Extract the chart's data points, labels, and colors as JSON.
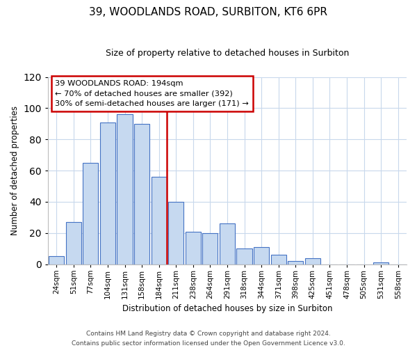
{
  "title": "39, WOODLANDS ROAD, SURBITON, KT6 6PR",
  "subtitle": "Size of property relative to detached houses in Surbiton",
  "xlabel": "Distribution of detached houses by size in Surbiton",
  "ylabel": "Number of detached properties",
  "bar_labels": [
    "24sqm",
    "51sqm",
    "77sqm",
    "104sqm",
    "131sqm",
    "158sqm",
    "184sqm",
    "211sqm",
    "238sqm",
    "264sqm",
    "291sqm",
    "318sqm",
    "344sqm",
    "371sqm",
    "398sqm",
    "425sqm",
    "451sqm",
    "478sqm",
    "505sqm",
    "531sqm",
    "558sqm"
  ],
  "bar_values": [
    5,
    27,
    65,
    91,
    96,
    90,
    56,
    40,
    21,
    20,
    26,
    10,
    11,
    6,
    2,
    4,
    0,
    0,
    0,
    1,
    0
  ],
  "bar_color": "#c6d9f0",
  "bar_edge_color": "#4472c4",
  "highlight_index": 6,
  "vline_x": 6,
  "vline_color": "#cc0000",
  "annotation_title": "39 WOODLANDS ROAD: 194sqm",
  "annotation_line1": "← 70% of detached houses are smaller (392)",
  "annotation_line2": "30% of semi-detached houses are larger (171) →",
  "annotation_box_color": "#ffffff",
  "annotation_box_edge": "#cc0000",
  "ylim": [
    0,
    120
  ],
  "yticks": [
    0,
    20,
    40,
    60,
    80,
    100,
    120
  ],
  "footer_line1": "Contains HM Land Registry data © Crown copyright and database right 2024.",
  "footer_line2": "Contains public sector information licensed under the Open Government Licence v3.0.",
  "bg_color": "#ffffff",
  "grid_color": "#c8d8ec"
}
